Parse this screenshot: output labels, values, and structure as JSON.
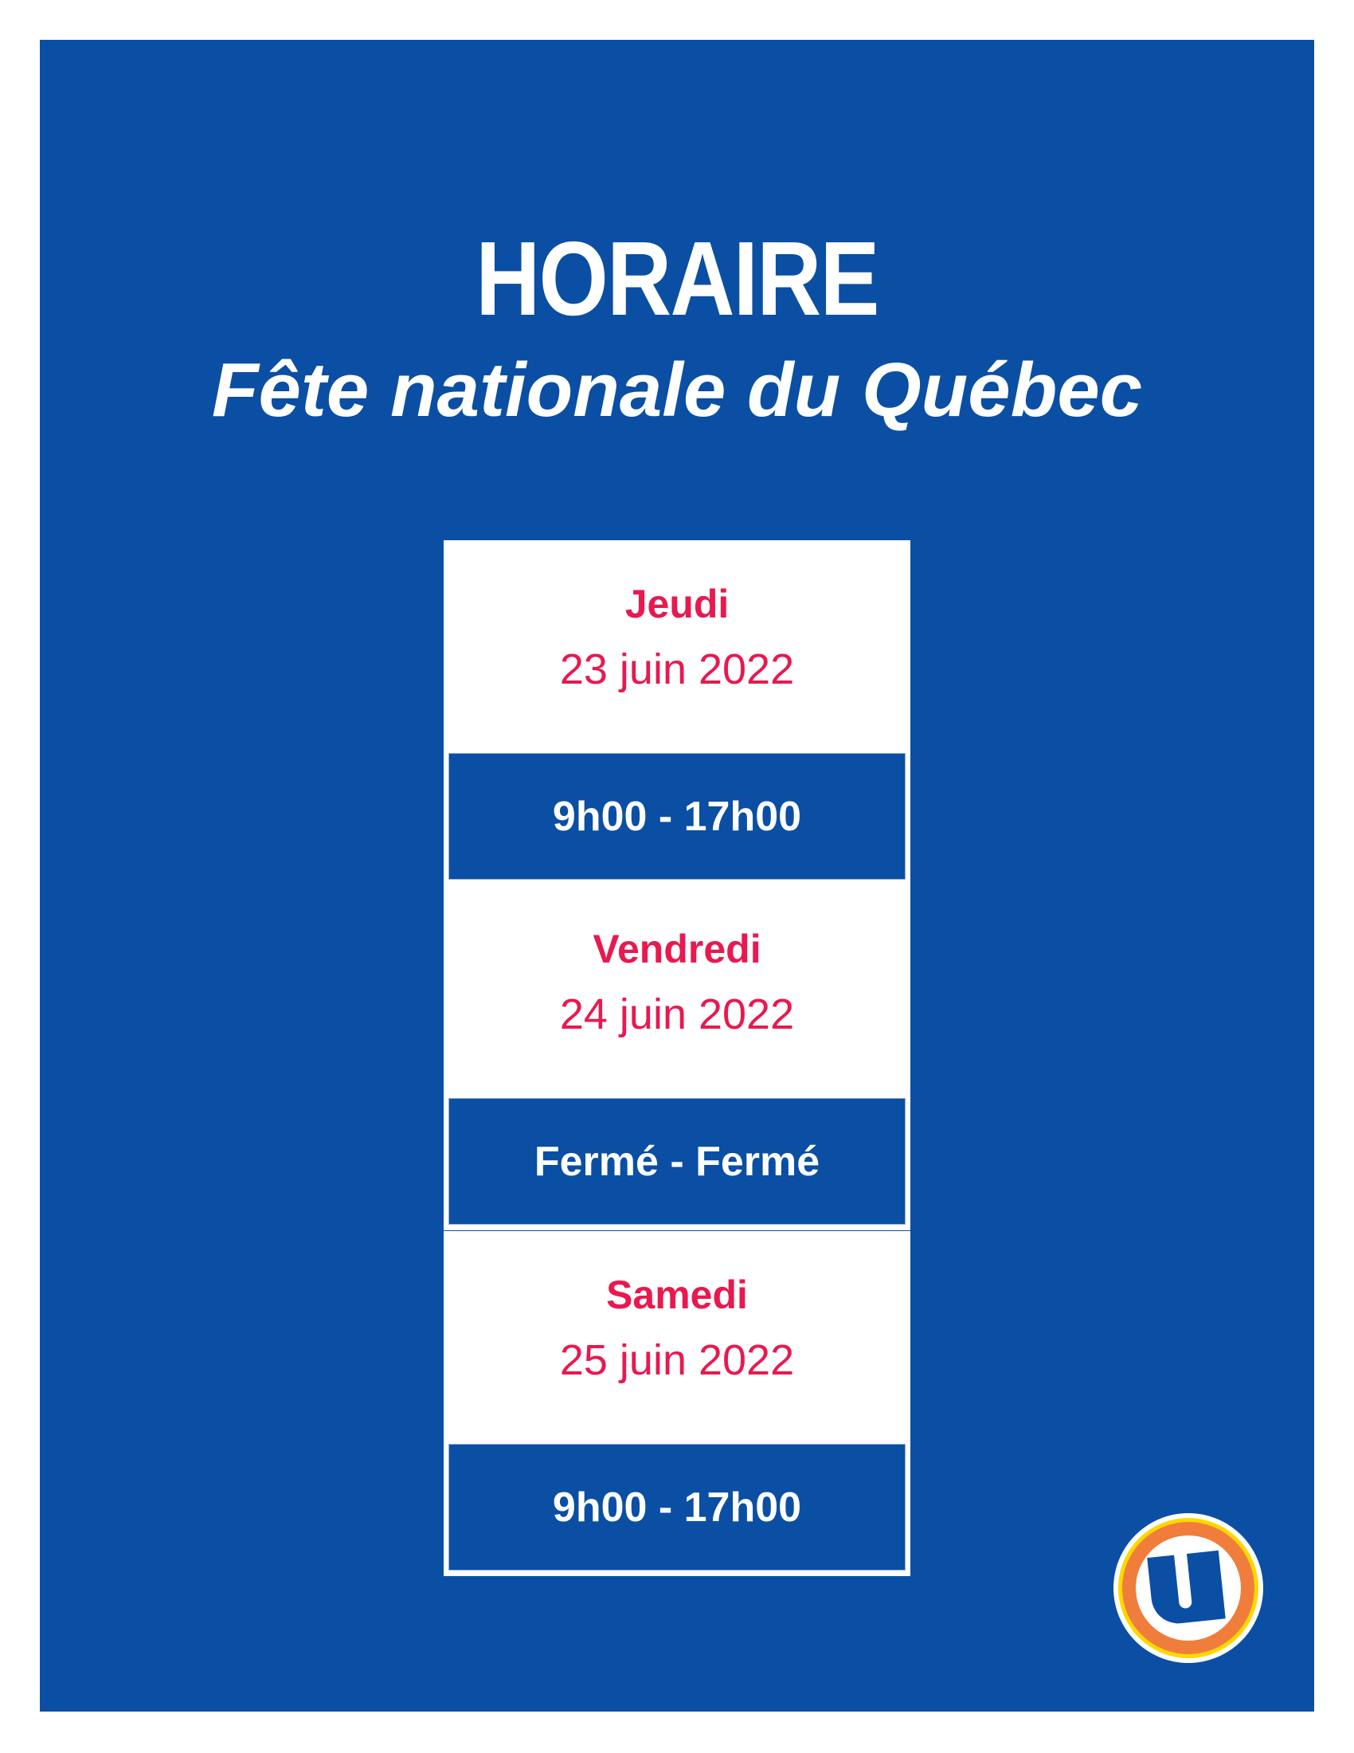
{
  "header": {
    "title": "HORAIRE",
    "subtitle": "Fête nationale du Québec"
  },
  "schedule": [
    {
      "day": "Jeudi",
      "date": "23 juin 2022",
      "hours": "9h00 - 17h00"
    },
    {
      "day": "Vendredi",
      "date": "24 juin 2022",
      "hours": "Fermé - Fermé"
    },
    {
      "day": "Samedi",
      "date": "25 juin 2022",
      "hours": "9h00 - 17h00"
    }
  ],
  "logo": {
    "icon": "u-logo-icon",
    "letter": "U"
  },
  "colors": {
    "background": "#0a4fa3",
    "accent": "#e8194f",
    "logo_orange": "#f07d3c",
    "logo_yellow": "#ffd800"
  }
}
